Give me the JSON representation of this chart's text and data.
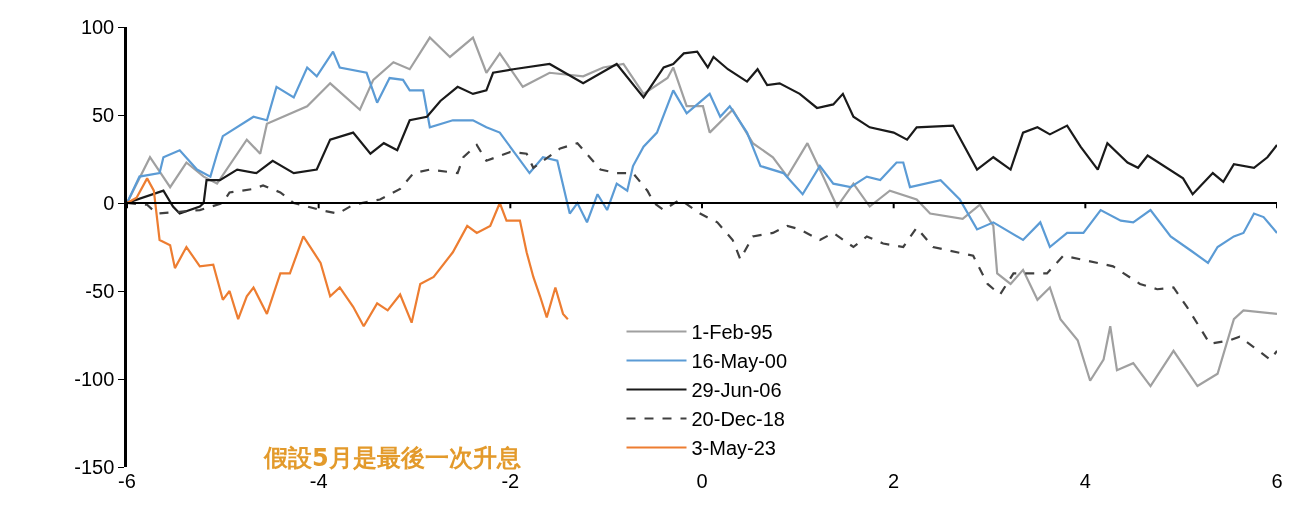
{
  "chart_data": {
    "type": "line",
    "xlim": [
      -6,
      6
    ],
    "ylim": [
      -150,
      100
    ],
    "xticks": [
      -6,
      -4,
      -2,
      0,
      2,
      4,
      6
    ],
    "yticks": [
      -150,
      -100,
      -50,
      0,
      50,
      100
    ],
    "legend": "bottom",
    "ref_lines": [
      {
        "axis": "y",
        "value": 0,
        "color": "#000000",
        "line_style": "solid"
      }
    ],
    "marker": "none",
    "annotations": [
      "假設5月是最後一次升息"
    ],
    "series": [
      {
        "name": "1-Feb-95",
        "color": "#a0a0a0",
        "line_style": "solid",
        "x": [
          -6,
          -5.76,
          -5.55,
          -5.38,
          -5.2,
          -5.06,
          -4.75,
          -4.61,
          -4.54,
          -4.12,
          -3.88,
          -3.57,
          -3.43,
          -3.22,
          -3.05,
          -2.84,
          -2.63,
          -2.39,
          -2.25,
          -2.11,
          -1.87,
          -1.59,
          -1.24,
          -1.03,
          -0.82,
          -0.61,
          -0.36,
          -0.3,
          -0.16,
          0.01,
          0.08,
          0.32,
          0.53,
          0.74,
          0.89,
          1.1,
          1.23,
          1.41,
          1.58,
          1.75,
          1.96,
          2.24,
          2.38,
          2.72,
          2.9,
          3.04,
          3.08,
          3.22,
          3.35,
          3.5,
          3.63,
          3.74,
          3.92,
          4.05,
          4.19,
          4.26,
          4.33,
          4.5,
          4.68,
          4.92,
          5.17,
          5.38,
          5.55,
          5.65,
          6
        ],
        "values": [
          0,
          26,
          9,
          23,
          15,
          11,
          36,
          28,
          45,
          55,
          68,
          53,
          70,
          80,
          76,
          94,
          83,
          94,
          74,
          85,
          66,
          74,
          72,
          77,
          79,
          62,
          71,
          77,
          55,
          55,
          40,
          53,
          34,
          26,
          15,
          34,
          19,
          -2,
          11,
          -2,
          7,
          2,
          -6,
          -9,
          -1,
          -13,
          -40,
          -46,
          -38,
          -55,
          -48,
          -66,
          -78,
          -101,
          -89,
          -70,
          -95,
          -91,
          -104,
          -84,
          -104,
          -97,
          -66,
          -61,
          -63
        ]
      },
      {
        "name": "16-May-00",
        "color": "#5b9bd5",
        "line_style": "solid",
        "x": [
          -6,
          -5.87,
          -5.66,
          -5.62,
          -5.45,
          -5.27,
          -5.13,
          -5.06,
          -5.0,
          -4.68,
          -4.54,
          -4.44,
          -4.26,
          -4.12,
          -4.02,
          -3.85,
          -3.78,
          -3.5,
          -3.39,
          -3.26,
          -3.12,
          -3.05,
          -2.91,
          -2.84,
          -2.6,
          -2.39,
          -2.25,
          -2.11,
          -1.8,
          -1.66,
          -1.51,
          -1.38,
          -1.3,
          -1.2,
          -1.09,
          -0.99,
          -0.89,
          -0.78,
          -0.72,
          -0.61,
          -0.47,
          -0.3,
          -0.16,
          0.08,
          0.19,
          0.29,
          0.47,
          0.61,
          0.85,
          1.05,
          1.23,
          1.37,
          1.55,
          1.72,
          1.86,
          2.03,
          2.1,
          2.17,
          2.49,
          2.69,
          2.87,
          3.04,
          3.35,
          3.53,
          3.63,
          3.81,
          3.98,
          4.16,
          4.37,
          4.5,
          4.68,
          4.89,
          5.1,
          5.28,
          5.38,
          5.55,
          5.65,
          5.76,
          5.86,
          6
        ],
        "values": [
          0,
          15,
          17,
          26,
          30,
          19,
          15,
          28,
          38,
          49,
          47,
          66,
          60,
          77,
          72,
          86,
          77,
          74,
          57,
          71,
          70,
          64,
          64,
          43,
          47,
          47,
          43,
          40,
          17,
          26,
          24,
          -6,
          0,
          -11,
          5,
          -4,
          11,
          7,
          21,
          32,
          40,
          64,
          51,
          62,
          49,
          55,
          40,
          21,
          17,
          5,
          21,
          11,
          9,
          15,
          13,
          23,
          23,
          9,
          13,
          2,
          -15,
          -11,
          -21,
          -11,
          -25,
          -17,
          -17,
          -4,
          -10,
          -11,
          -4,
          -19,
          -27,
          -34,
          -25,
          -19,
          -17,
          -6,
          -8,
          -17
        ]
      },
      {
        "name": "29-Jun-06",
        "color": "#1a1a1a",
        "line_style": "solid",
        "x": [
          -6,
          -5.62,
          -5.52,
          -5.45,
          -5.24,
          -5.2,
          -5.17,
          -5.03,
          -4.85,
          -4.65,
          -4.48,
          -4.26,
          -4.02,
          -3.88,
          -3.64,
          -3.46,
          -3.32,
          -3.18,
          -3.05,
          -2.87,
          -2.73,
          -2.55,
          -2.39,
          -2.25,
          -2.18,
          -1.97,
          -1.59,
          -1.24,
          -0.89,
          -0.61,
          -0.4,
          -0.3,
          -0.19,
          -0.05,
          0.06,
          0.12,
          0.27,
          0.47,
          0.58,
          0.68,
          0.81,
          1.02,
          1.2,
          1.37,
          1.47,
          1.58,
          1.75,
          2.0,
          2.14,
          2.24,
          2.62,
          2.87,
          3.04,
          3.22,
          3.35,
          3.5,
          3.63,
          3.81,
          3.95,
          4.13,
          4.23,
          4.44,
          4.55,
          4.65,
          5.02,
          5.12,
          5.33,
          5.44,
          5.55,
          5.76,
          5.9,
          6
        ],
        "values": [
          0,
          7,
          -2,
          -6,
          -2,
          0,
          13,
          13,
          19,
          17,
          24,
          17,
          19,
          36,
          40,
          28,
          34,
          30,
          47,
          49,
          58,
          66,
          62,
          64,
          74,
          76,
          79,
          68,
          79,
          60,
          77,
          79,
          85,
          86,
          77,
          83,
          76,
          69,
          76,
          67,
          68,
          62,
          54,
          56,
          62,
          49,
          43,
          40,
          36,
          43,
          44,
          19,
          26,
          19,
          40,
          43,
          39,
          44,
          32,
          19,
          34,
          23,
          20,
          27,
          14,
          5,
          17,
          12,
          22,
          20,
          26,
          33
        ]
      },
      {
        "name": "20-Dec-18",
        "color": "#404040",
        "line_style": "dashed",
        "x": [
          -6,
          -5.79,
          -5.69,
          -5.45,
          -5.24,
          -5.0,
          -4.93,
          -4.68,
          -4.58,
          -4.4,
          -4.26,
          -4.12,
          -3.98,
          -3.8,
          -3.64,
          -3.36,
          -3.15,
          -3.01,
          -2.84,
          -2.55,
          -2.49,
          -2.35,
          -2.25,
          -2.0,
          -1.83,
          -1.76,
          -1.48,
          -1.3,
          -1.06,
          -0.89,
          -0.72,
          -0.57,
          -0.5,
          -0.4,
          -0.23,
          -0.02,
          0.16,
          0.32,
          0.4,
          0.53,
          0.74,
          0.89,
          1.02,
          1.23,
          1.37,
          1.58,
          1.72,
          1.89,
          2.1,
          2.24,
          2.41,
          2.83,
          2.98,
          3.11,
          3.25,
          3.6,
          3.77,
          3.95,
          4.29,
          4.57,
          4.75,
          4.92,
          5.06,
          5.3,
          5.51,
          5.61,
          5.76,
          5.93,
          6
        ],
        "values": [
          0,
          -1,
          -6,
          -5,
          -4,
          0,
          6,
          8,
          10,
          6,
          0,
          -2,
          -4,
          -6,
          -1,
          2,
          8,
          17,
          19,
          17,
          26,
          33,
          24,
          29,
          28,
          20,
          31,
          34,
          19,
          17,
          17,
          7,
          0,
          -4,
          2,
          -6,
          -11,
          -21,
          -32,
          -19,
          -17,
          -13,
          -15,
          -21,
          -17,
          -25,
          -19,
          -23,
          -25,
          -14,
          -25,
          -30,
          -46,
          -52,
          -40,
          -40,
          -30,
          -32,
          -36,
          -46,
          -49,
          -48,
          -59,
          -80,
          -78,
          -76,
          -82,
          -89,
          -84
        ]
      },
      {
        "name": "3-May-23",
        "color": "#ed7d31",
        "line_style": "solid",
        "x": [
          -6,
          -5.9,
          -5.79,
          -5.72,
          -5.66,
          -5.55,
          -5.5,
          -5.38,
          -5.24,
          -5.1,
          -5.0,
          -4.93,
          -4.84,
          -4.75,
          -4.68,
          -4.54,
          -4.4,
          -4.3,
          -4.16,
          -3.98,
          -3.88,
          -3.78,
          -3.64,
          -3.53,
          -3.39,
          -3.28,
          -3.15,
          -3.03,
          -2.94,
          -2.8,
          -2.6,
          -2.45,
          -2.35,
          -2.21,
          -2.11,
          -2.04,
          -1.9,
          -1.83,
          -1.76,
          -1.69,
          -1.62,
          -1.53,
          -1.45,
          -1.4
        ],
        "values": [
          0,
          3,
          14,
          7,
          -21,
          -24,
          -37,
          -25,
          -36,
          -35,
          -55,
          -50,
          -66,
          -53,
          -48,
          -63,
          -40,
          -40,
          -19,
          -34,
          -53,
          -48,
          -59,
          -70,
          -57,
          -61,
          -52,
          -68,
          -46,
          -42,
          -28,
          -13,
          -17,
          -13,
          0,
          -10,
          -10,
          -28,
          -42,
          -53,
          -65,
          -48,
          -63,
          -66
        ]
      }
    ]
  }
}
